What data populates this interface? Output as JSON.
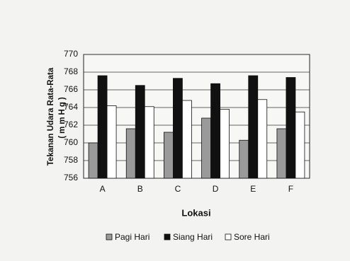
{
  "chart_data": {
    "type": "bar",
    "categories": [
      "A",
      "B",
      "C",
      "D",
      "E",
      "F"
    ],
    "series": [
      {
        "name": "Pagi Hari",
        "color": "#9a9a9a",
        "values": [
          760.0,
          761.6,
          761.2,
          762.8,
          760.3,
          761.6
        ]
      },
      {
        "name": "Siang Hari",
        "color": "#111111",
        "values": [
          767.6,
          766.5,
          767.3,
          766.7,
          767.6,
          767.4
        ]
      },
      {
        "name": "Sore Hari",
        "color": "#ffffff",
        "values": [
          764.2,
          764.1,
          764.8,
          763.8,
          764.9,
          763.5
        ]
      }
    ],
    "ylim": [
      756,
      770
    ],
    "yticks": [
      756,
      758,
      760,
      762,
      764,
      766,
      768,
      770
    ],
    "ylabel": [
      "Tekanan Udara Rata-Rata",
      "(mmHg)"
    ],
    "xlabel": "Lokasi",
    "grid": true,
    "legend": "bottom"
  }
}
